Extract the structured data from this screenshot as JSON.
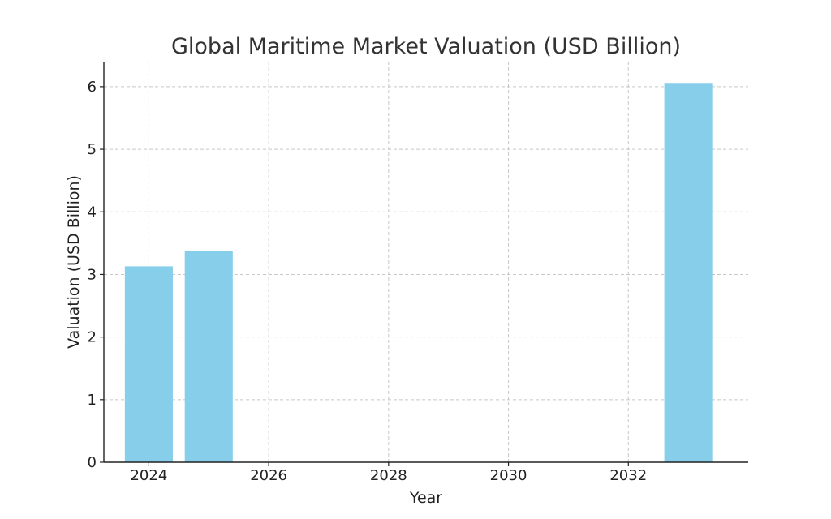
{
  "chart_data": {
    "type": "bar",
    "title": "Global Maritime Market Valuation (USD Billion)",
    "xlabel": "Year",
    "ylabel": "Valuation (USD Billion)",
    "x": [
      2024,
      2025,
      2033
    ],
    "values": [
      3.13,
      3.37,
      6.06
    ],
    "xlim": [
      2023.25,
      2034.0
    ],
    "ylim": [
      0,
      6.4
    ],
    "xticks": [
      "2024",
      "2026",
      "2028",
      "2030",
      "2032"
    ],
    "yticks": [
      "0",
      "1",
      "2",
      "3",
      "4",
      "5",
      "6"
    ],
    "grid": true,
    "bar_color": "#87CEEB"
  }
}
